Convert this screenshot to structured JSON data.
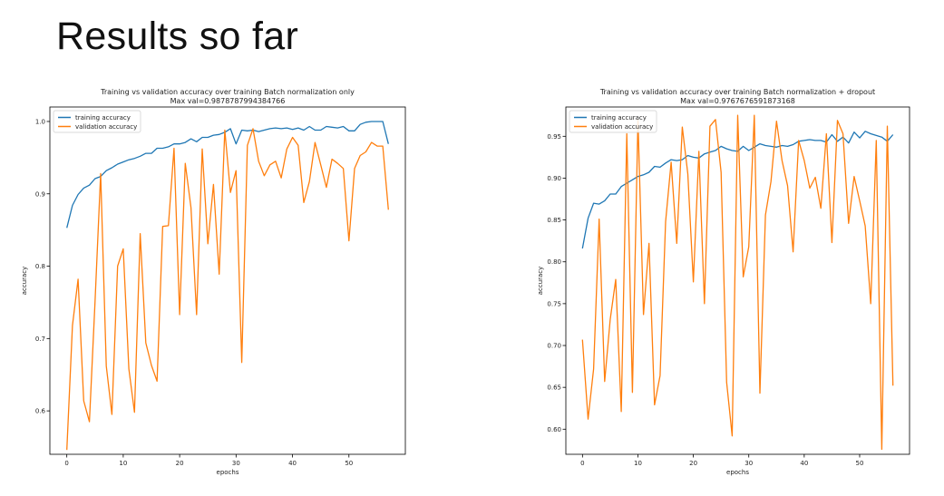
{
  "slide": {
    "title": "Results so far"
  },
  "chart_data": [
    {
      "type": "line",
      "title_line1": "Training vs validation accuracy over training Batch normalization only",
      "title_line2": "Max val=0.9878787994384766",
      "xlabel": "epochs",
      "ylabel": "accuracy",
      "xlim": [
        -3,
        60
      ],
      "ylim": [
        0.54,
        1.02
      ],
      "xticks": [
        0,
        10,
        20,
        30,
        40,
        50
      ],
      "yticks": [
        0.6,
        0.7,
        0.8,
        0.9,
        1.0
      ],
      "ytick_labels": [
        "0.6",
        "0.7",
        "0.8",
        "0.9",
        "1.0"
      ],
      "legend_position": "top-left",
      "series": [
        {
          "name": "training accuracy",
          "color": "#1f77b4",
          "values": [
            0.853,
            0.884,
            0.899,
            0.908,
            0.912,
            0.921,
            0.924,
            0.932,
            0.936,
            0.941,
            0.944,
            0.947,
            0.949,
            0.952,
            0.956,
            0.956,
            0.963,
            0.963,
            0.965,
            0.969,
            0.969,
            0.971,
            0.976,
            0.972,
            0.978,
            0.978,
            0.981,
            0.982,
            0.985,
            0.99,
            0.969,
            0.988,
            0.987,
            0.988,
            0.986,
            0.988,
            0.99,
            0.991,
            0.99,
            0.991,
            0.989,
            0.991,
            0.988,
            0.993,
            0.988,
            0.988,
            0.993,
            0.992,
            0.991,
            0.993,
            0.987,
            0.987,
            0.996,
            0.999,
            1.0,
            1.0,
            1.0,
            0.969
          ]
        },
        {
          "name": "validation accuracy",
          "color": "#ff7f0e",
          "values": [
            0.546,
            0.718,
            0.782,
            0.614,
            0.585,
            0.751,
            0.928,
            0.662,
            0.595,
            0.8,
            0.824,
            0.658,
            0.598,
            0.845,
            0.694,
            0.663,
            0.641,
            0.855,
            0.856,
            0.963,
            0.733,
            0.942,
            0.881,
            0.733,
            0.962,
            0.831,
            0.913,
            0.789,
            0.988,
            0.902,
            0.932,
            0.667,
            0.967,
            0.99,
            0.945,
            0.925,
            0.94,
            0.945,
            0.922,
            0.962,
            0.978,
            0.967,
            0.888,
            0.917,
            0.971,
            0.94,
            0.909,
            0.948,
            0.942,
            0.935,
            0.835,
            0.935,
            0.953,
            0.958,
            0.971,
            0.966,
            0.966,
            0.878
          ]
        }
      ]
    },
    {
      "type": "line",
      "title_line1": "Training vs validation accuracy over training Batch normalization + dropout",
      "title_line2": "Max val=0.9767676591873168",
      "xlabel": "epochs",
      "ylabel": "accuracy",
      "xlim": [
        -3,
        59
      ],
      "ylim": [
        0.57,
        0.985
      ],
      "xticks": [
        0,
        10,
        20,
        30,
        40,
        50
      ],
      "yticks": [
        0.6,
        0.65,
        0.7,
        0.75,
        0.8,
        0.85,
        0.9,
        0.95
      ],
      "ytick_labels": [
        "0.60",
        "0.65",
        "0.70",
        "0.75",
        "0.80",
        "0.85",
        "0.90",
        "0.95"
      ],
      "legend_position": "top-left",
      "series": [
        {
          "name": "training accuracy",
          "color": "#1f77b4",
          "values": [
            0.816,
            0.852,
            0.87,
            0.869,
            0.873,
            0.881,
            0.881,
            0.89,
            0.894,
            0.898,
            0.902,
            0.904,
            0.907,
            0.914,
            0.913,
            0.918,
            0.922,
            0.921,
            0.922,
            0.927,
            0.925,
            0.924,
            0.929,
            0.931,
            0.933,
            0.938,
            0.935,
            0.933,
            0.932,
            0.938,
            0.933,
            0.937,
            0.941,
            0.939,
            0.938,
            0.937,
            0.939,
            0.938,
            0.94,
            0.944,
            0.945,
            0.946,
            0.945,
            0.945,
            0.943,
            0.952,
            0.944,
            0.949,
            0.942,
            0.955,
            0.948,
            0.956,
            0.953,
            0.951,
            0.949,
            0.944,
            0.952
          ]
        },
        {
          "name": "validation accuracy",
          "color": "#ff7f0e",
          "values": [
            0.707,
            0.612,
            0.672,
            0.851,
            0.657,
            0.731,
            0.779,
            0.621,
            0.953,
            0.644,
            0.97,
            0.737,
            0.822,
            0.629,
            0.664,
            0.848,
            0.919,
            0.822,
            0.961,
            0.905,
            0.776,
            0.932,
            0.75,
            0.962,
            0.97,
            0.907,
            0.656,
            0.592,
            0.975,
            0.782,
            0.818,
            0.975,
            0.643,
            0.856,
            0.896,
            0.968,
            0.921,
            0.891,
            0.812,
            0.945,
            0.921,
            0.888,
            0.901,
            0.864,
            0.953,
            0.823,
            0.969,
            0.953,
            0.846,
            0.902,
            0.873,
            0.843,
            0.75,
            0.945,
            0.576,
            0.962,
            0.652
          ]
        }
      ]
    }
  ]
}
